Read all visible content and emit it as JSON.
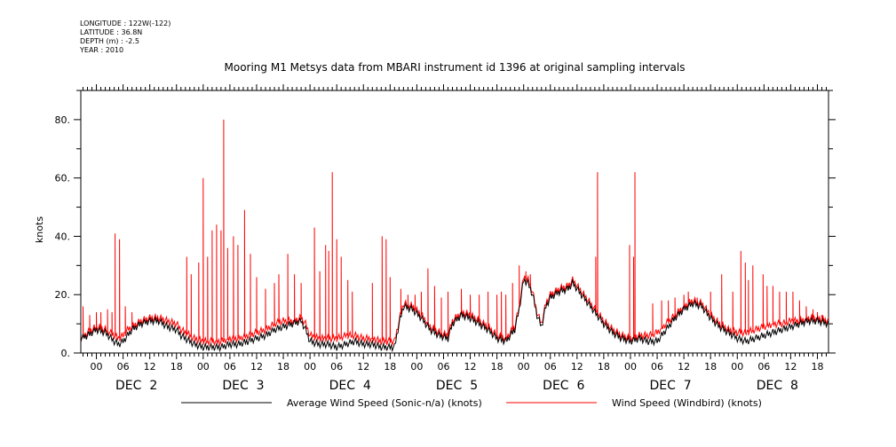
{
  "header": {
    "longitude": "LONGITUDE : 122W(-122)",
    "latitude": "LATITUDE : 36.8N",
    "depth": "DEPTH (m) : -2.5",
    "year": "YEAR : 2010"
  },
  "chart_data": {
    "type": "line",
    "title": "Mooring M1 Metsys data from MBARI instrument id 1396 at original sampling intervals",
    "ylabel": "knots",
    "xlabel": "",
    "ylim": [
      0,
      90
    ],
    "yticks": [
      0,
      20,
      40,
      60,
      80
    ],
    "ytick_labels": [
      "0.",
      "20.",
      "40.",
      "60.",
      "80."
    ],
    "xlim_hours": [
      -3.5,
      164.5
    ],
    "x_hour_ticks": [
      0,
      6,
      12,
      18,
      24,
      30,
      36,
      42,
      48,
      54,
      60,
      66,
      72,
      78,
      84,
      90,
      96,
      102,
      108,
      114,
      120,
      126,
      132,
      138,
      144,
      150,
      156,
      162
    ],
    "x_hour_labels": [
      "00",
      "06",
      "12",
      "18",
      "00",
      "06",
      "12",
      "18",
      "00",
      "06",
      "12",
      "18",
      "00",
      "06",
      "12",
      "18",
      "00",
      "06",
      "12",
      "18",
      "00",
      "06",
      "12",
      "18",
      "00",
      "06",
      "12",
      "18"
    ],
    "day_labels": [
      {
        "label": "DEC  2",
        "center_hour": 9
      },
      {
        "label": "DEC  3",
        "center_hour": 33
      },
      {
        "label": "DEC  4",
        "center_hour": 57
      },
      {
        "label": "DEC  5",
        "center_hour": 81
      },
      {
        "label": "DEC  6",
        "center_hour": 105
      },
      {
        "label": "DEC  7",
        "center_hour": 129
      },
      {
        "label": "DEC  8",
        "center_hour": 153
      }
    ],
    "grid": false,
    "legend_position": "bottom",
    "series": [
      {
        "name": "Average Wind Speed (Sonic-n/a) (knots)",
        "color": "#000000",
        "base": [
          [
            -3.5,
            5
          ],
          [
            -2,
            6
          ],
          [
            0,
            8
          ],
          [
            2,
            7
          ],
          [
            4,
            4
          ],
          [
            5,
            3
          ],
          [
            6,
            4
          ],
          [
            7,
            6
          ],
          [
            8,
            8
          ],
          [
            10,
            10
          ],
          [
            12,
            11
          ],
          [
            14,
            11
          ],
          [
            16,
            9
          ],
          [
            18,
            8
          ],
          [
            19,
            6
          ],
          [
            20,
            5
          ],
          [
            22,
            3
          ],
          [
            24,
            2
          ],
          [
            26,
            2
          ],
          [
            28,
            2
          ],
          [
            30,
            3
          ],
          [
            32,
            3
          ],
          [
            34,
            4
          ],
          [
            36,
            5
          ],
          [
            38,
            6
          ],
          [
            40,
            8
          ],
          [
            42,
            9
          ],
          [
            44,
            10
          ],
          [
            46,
            11
          ],
          [
            47,
            8
          ],
          [
            48,
            4
          ],
          [
            50,
            3
          ],
          [
            52,
            3
          ],
          [
            54,
            2
          ],
          [
            56,
            3
          ],
          [
            58,
            4
          ],
          [
            60,
            3
          ],
          [
            62,
            3
          ],
          [
            64,
            2
          ],
          [
            66,
            2
          ],
          [
            67,
            2
          ],
          [
            68,
            10
          ],
          [
            69,
            16
          ],
          [
            71,
            15
          ],
          [
            73,
            12
          ],
          [
            75,
            8
          ],
          [
            77,
            6
          ],
          [
            79,
            5
          ],
          [
            80,
            10
          ],
          [
            82,
            13
          ],
          [
            84,
            12
          ],
          [
            86,
            10
          ],
          [
            88,
            8
          ],
          [
            90,
            5
          ],
          [
            92,
            4
          ],
          [
            94,
            8
          ],
          [
            95,
            15
          ],
          [
            96,
            25
          ],
          [
            97,
            24
          ],
          [
            98,
            20
          ],
          [
            99,
            13
          ],
          [
            100,
            9
          ],
          [
            101,
            16
          ],
          [
            102,
            19
          ],
          [
            104,
            21
          ],
          [
            106,
            22
          ],
          [
            107,
            24
          ],
          [
            108,
            22
          ],
          [
            110,
            18
          ],
          [
            112,
            14
          ],
          [
            114,
            10
          ],
          [
            116,
            7
          ],
          [
            118,
            5
          ],
          [
            120,
            4
          ],
          [
            122,
            5
          ],
          [
            124,
            4
          ],
          [
            126,
            4
          ],
          [
            128,
            8
          ],
          [
            130,
            12
          ],
          [
            132,
            15
          ],
          [
            134,
            17
          ],
          [
            136,
            16
          ],
          [
            138,
            12
          ],
          [
            140,
            9
          ],
          [
            142,
            7
          ],
          [
            144,
            5
          ],
          [
            146,
            4
          ],
          [
            148,
            5
          ],
          [
            150,
            6
          ],
          [
            152,
            7
          ],
          [
            154,
            8
          ],
          [
            156,
            9
          ],
          [
            158,
            10
          ],
          [
            160,
            11
          ],
          [
            162,
            11
          ],
          [
            164.5,
            10
          ]
        ]
      },
      {
        "name": "Wind Speed (Windbird) (knots)",
        "color": "#ff0000",
        "base": [
          [
            -3.5,
            5
          ],
          [
            -2,
            7
          ],
          [
            0,
            9
          ],
          [
            2,
            8
          ],
          [
            4,
            6
          ],
          [
            5,
            5
          ],
          [
            6,
            6
          ],
          [
            7,
            8
          ],
          [
            8,
            9
          ],
          [
            10,
            11
          ],
          [
            12,
            12
          ],
          [
            14,
            12
          ],
          [
            16,
            11
          ],
          [
            18,
            10
          ],
          [
            19,
            8
          ],
          [
            20,
            7
          ],
          [
            22,
            5
          ],
          [
            24,
            4
          ],
          [
            26,
            4
          ],
          [
            28,
            4
          ],
          [
            30,
            5
          ],
          [
            32,
            5
          ],
          [
            34,
            6
          ],
          [
            36,
            7
          ],
          [
            38,
            8
          ],
          [
            40,
            10
          ],
          [
            42,
            11
          ],
          [
            44,
            11
          ],
          [
            46,
            12
          ],
          [
            47,
            10
          ],
          [
            48,
            6
          ],
          [
            50,
            5
          ],
          [
            52,
            5
          ],
          [
            54,
            5
          ],
          [
            56,
            6
          ],
          [
            58,
            6
          ],
          [
            60,
            5
          ],
          [
            62,
            5
          ],
          [
            64,
            4
          ],
          [
            66,
            4
          ],
          [
            67,
            4
          ],
          [
            68,
            11
          ],
          [
            69,
            17
          ],
          [
            71,
            16
          ],
          [
            73,
            13
          ],
          [
            75,
            9
          ],
          [
            77,
            7
          ],
          [
            79,
            6
          ],
          [
            80,
            11
          ],
          [
            82,
            14
          ],
          [
            84,
            13
          ],
          [
            86,
            11
          ],
          [
            88,
            9
          ],
          [
            90,
            6
          ],
          [
            92,
            5
          ],
          [
            94,
            9
          ],
          [
            95,
            16
          ],
          [
            96,
            26
          ],
          [
            97,
            25
          ],
          [
            98,
            21
          ],
          [
            99,
            14
          ],
          [
            100,
            10
          ],
          [
            101,
            17
          ],
          [
            102,
            20
          ],
          [
            104,
            22
          ],
          [
            106,
            23
          ],
          [
            107,
            25
          ],
          [
            108,
            23
          ],
          [
            110,
            19
          ],
          [
            112,
            15
          ],
          [
            114,
            11
          ],
          [
            116,
            8
          ],
          [
            118,
            6
          ],
          [
            120,
            5
          ],
          [
            122,
            6
          ],
          [
            124,
            6
          ],
          [
            126,
            7
          ],
          [
            128,
            10
          ],
          [
            130,
            13
          ],
          [
            132,
            16
          ],
          [
            134,
            18
          ],
          [
            136,
            17
          ],
          [
            138,
            13
          ],
          [
            140,
            10
          ],
          [
            142,
            8
          ],
          [
            144,
            7
          ],
          [
            146,
            7
          ],
          [
            148,
            8
          ],
          [
            150,
            9
          ],
          [
            152,
            10
          ],
          [
            154,
            10
          ],
          [
            156,
            11
          ],
          [
            158,
            11
          ],
          [
            160,
            12
          ],
          [
            162,
            12
          ],
          [
            164.5,
            11
          ]
        ],
        "spikes": [
          [
            -3,
            16
          ],
          [
            -1.5,
            13
          ],
          [
            0,
            14
          ],
          [
            1,
            14
          ],
          [
            2.5,
            15
          ],
          [
            3.5,
            14
          ],
          [
            4.2,
            41
          ],
          [
            5.2,
            39
          ],
          [
            6.5,
            16
          ],
          [
            8,
            14
          ],
          [
            20.3,
            33
          ],
          [
            21.3,
            27
          ],
          [
            23,
            31
          ],
          [
            24,
            60
          ],
          [
            25,
            33
          ],
          [
            26,
            42
          ],
          [
            27,
            44
          ],
          [
            28,
            42
          ],
          [
            28.6,
            80
          ],
          [
            29.5,
            36
          ],
          [
            30.8,
            40
          ],
          [
            31.8,
            37
          ],
          [
            33.3,
            49
          ],
          [
            34.6,
            34
          ],
          [
            36,
            26
          ],
          [
            38,
            22
          ],
          [
            40,
            24
          ],
          [
            41,
            27
          ],
          [
            43,
            34
          ],
          [
            44.5,
            27
          ],
          [
            46,
            24
          ],
          [
            49,
            43
          ],
          [
            50.2,
            28
          ],
          [
            51.5,
            37
          ],
          [
            52.2,
            35
          ],
          [
            53,
            62
          ],
          [
            54,
            39
          ],
          [
            55,
            33
          ],
          [
            56.5,
            25
          ],
          [
            57.5,
            21
          ],
          [
            62,
            24
          ],
          [
            64.2,
            40
          ],
          [
            65.1,
            39
          ],
          [
            66,
            26
          ],
          [
            68.4,
            22
          ],
          [
            70,
            20
          ],
          [
            71.6,
            20
          ],
          [
            73,
            21
          ],
          [
            74.5,
            29
          ],
          [
            76,
            23
          ],
          [
            77.5,
            19
          ],
          [
            79,
            21
          ],
          [
            82,
            22
          ],
          [
            84,
            20
          ],
          [
            86,
            20
          ],
          [
            88,
            21
          ],
          [
            90,
            20
          ],
          [
            91,
            21
          ],
          [
            92,
            20
          ],
          [
            93.5,
            24
          ],
          [
            95,
            30
          ],
          [
            96.5,
            28
          ],
          [
            97.5,
            27
          ],
          [
            112.2,
            33
          ],
          [
            112.6,
            62
          ],
          [
            119.8,
            37
          ],
          [
            120.7,
            33
          ],
          [
            121,
            62
          ],
          [
            125,
            17
          ],
          [
            127,
            18
          ],
          [
            128.5,
            18
          ],
          [
            130,
            19
          ],
          [
            132,
            20
          ],
          [
            133,
            21
          ],
          [
            135,
            19
          ],
          [
            138,
            21
          ],
          [
            140.5,
            27
          ],
          [
            143,
            21
          ],
          [
            144.8,
            35
          ],
          [
            145.8,
            31
          ],
          [
            146.5,
            25
          ],
          [
            147.5,
            30
          ],
          [
            149.8,
            27
          ],
          [
            150.7,
            23
          ],
          [
            152,
            23
          ],
          [
            153.5,
            21
          ],
          [
            155,
            21
          ],
          [
            156.5,
            21
          ],
          [
            158,
            18
          ],
          [
            159.5,
            16
          ],
          [
            161,
            15
          ],
          [
            162,
            14
          ],
          [
            163,
            13
          ]
        ]
      }
    ]
  }
}
